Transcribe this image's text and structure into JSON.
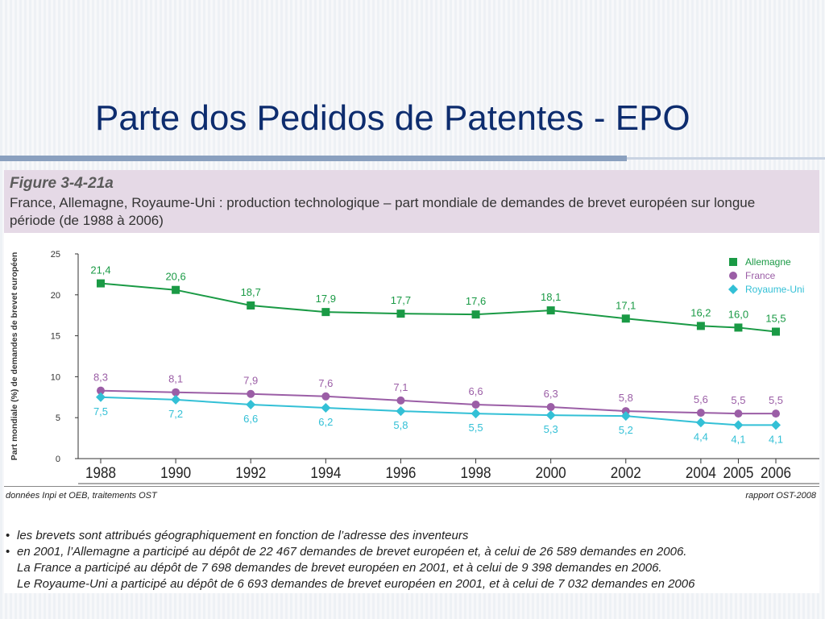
{
  "slide": {
    "title": "Parte dos Pedidos de Patentes - EPO"
  },
  "figure": {
    "label": "Figure 3-4-21a",
    "subtitle": "France, Allemagne, Royaume-Uni : production technologique – part mondiale de demandes de brevet européen sur longue période (de 1988 à 2006)",
    "source_left": "données Inpi et OEB, traitements OST",
    "source_right": "rapport OST-2008",
    "notes": [
      {
        "bullet": true,
        "text": "les brevets sont attribués géographiquement en fonction de l’adresse des inventeurs"
      },
      {
        "bullet": true,
        "text": "en 2001, l’Allemagne a participé au dépôt de 22 467 demandes de brevet européen et, à celui de 26 589 demandes en 2006."
      },
      {
        "bullet": false,
        "text": "La France a participé au dépôt de 7 698 demandes de brevet européen en 2001, et à celui de 9 398 demandes en 2006."
      },
      {
        "bullet": false,
        "text": "Le Royaume-Uni a participé au dépôt de 6 693 demandes de brevet européen en 2001, et à celui de 7 032 demandes en 2006"
      }
    ]
  },
  "chart_data": {
    "type": "line",
    "title": "",
    "xlabel": "",
    "ylabel": "Part mondiale (%) de demandes de brevet européen",
    "x": [
      1988,
      1990,
      1992,
      1994,
      1996,
      1998,
      2000,
      2002,
      2004,
      2005,
      2006
    ],
    "x_tick_labels": [
      "1988",
      "1990",
      "1992",
      "1994",
      "1996",
      "1998",
      "2000",
      "2002",
      "2004",
      "2005",
      "2006"
    ],
    "ylim": [
      0,
      25
    ],
    "y_ticks": [
      0,
      5,
      10,
      15,
      20,
      25
    ],
    "y_tick_labels": [
      "0",
      "5",
      "10",
      "15",
      "20",
      "25"
    ],
    "grid": false,
    "legend_position": "top-right",
    "series": [
      {
        "name": "Allemagne",
        "color": "#1a9a45",
        "marker": "square",
        "values": [
          21.4,
          20.6,
          18.7,
          17.9,
          17.7,
          17.6,
          18.1,
          17.1,
          16.2,
          16.0,
          15.5
        ],
        "labels": [
          "21,4",
          "20,6",
          "18,7",
          "17,9",
          "17,7",
          "17,6",
          "18,1",
          "17,1",
          "16,2",
          "16,0",
          "15,5"
        ]
      },
      {
        "name": "France",
        "color": "#9b5ea6",
        "marker": "circle",
        "values": [
          8.3,
          8.1,
          7.9,
          7.6,
          7.1,
          6.6,
          6.3,
          5.8,
          5.6,
          5.5,
          5.5
        ],
        "labels": [
          "8,3",
          "8,1",
          "7,9",
          "7,6",
          "7,1",
          "6,6",
          "6,3",
          "5,8",
          "5,6",
          "5,5",
          "5,5"
        ]
      },
      {
        "name": "Royaume-Uni",
        "color": "#33c0d6",
        "marker": "diamond",
        "values": [
          7.5,
          7.2,
          6.6,
          6.2,
          5.8,
          5.5,
          5.3,
          5.2,
          4.4,
          4.1,
          4.1
        ],
        "labels": [
          "7,5",
          "7,2",
          "6,6",
          "6,2",
          "5,8",
          "5,5",
          "5,3",
          "5,2",
          "4,4",
          "4,1",
          "4,1"
        ]
      }
    ]
  }
}
